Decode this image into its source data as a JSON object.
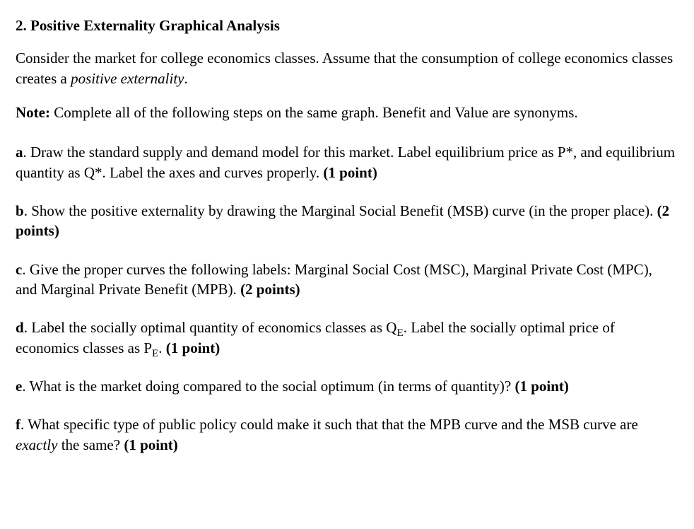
{
  "heading": "2. Positive Externality Graphical Analysis",
  "intro_pre": "Consider the market for college economics classes. Assume that the consumption of college economics classes creates a ",
  "intro_em": "positive externality",
  "intro_post": ".",
  "note_label": "Note:",
  "note_text": " Complete all of the following steps on the same graph. Benefit and Value are synonyms.",
  "a_label": "a",
  "a_text": ". Draw the standard supply and demand model for this market. Label equilibrium price as P*, and equilibrium quantity as Q*. Label the axes and curves properly. ",
  "a_pts": "(1 point)",
  "b_label": "b",
  "b_text": ". Show the positive externality by drawing the Marginal Social Benefit (MSB) curve (in the proper place). ",
  "b_pts": "(2 points)",
  "c_label": "c",
  "c_text": ". Give the proper curves the following labels: Marginal Social Cost (MSC), Marginal Private Cost (MPC), and Marginal Private Benefit (MPB). ",
  "c_pts": "(2 points)",
  "d_label": "d",
  "d_pre": ". Label the socially optimal quantity of economics classes as Q",
  "d_sub1": "E",
  "d_mid": ". Label the socially optimal price of economics classes as P",
  "d_sub2": "E",
  "d_post": ". ",
  "d_pts": "(1 point)",
  "e_label": "e",
  "e_text": ". What is the market doing compared to the social optimum (in terms of quantity)? ",
  "e_pts": "(1 point)",
  "f_label": "f",
  "f_pre": ". What specific type of public policy could make it such that that the MPB curve and the MSB curve are ",
  "f_em": "exactly",
  "f_post": " the same? ",
  "f_pts": "(1 point)"
}
